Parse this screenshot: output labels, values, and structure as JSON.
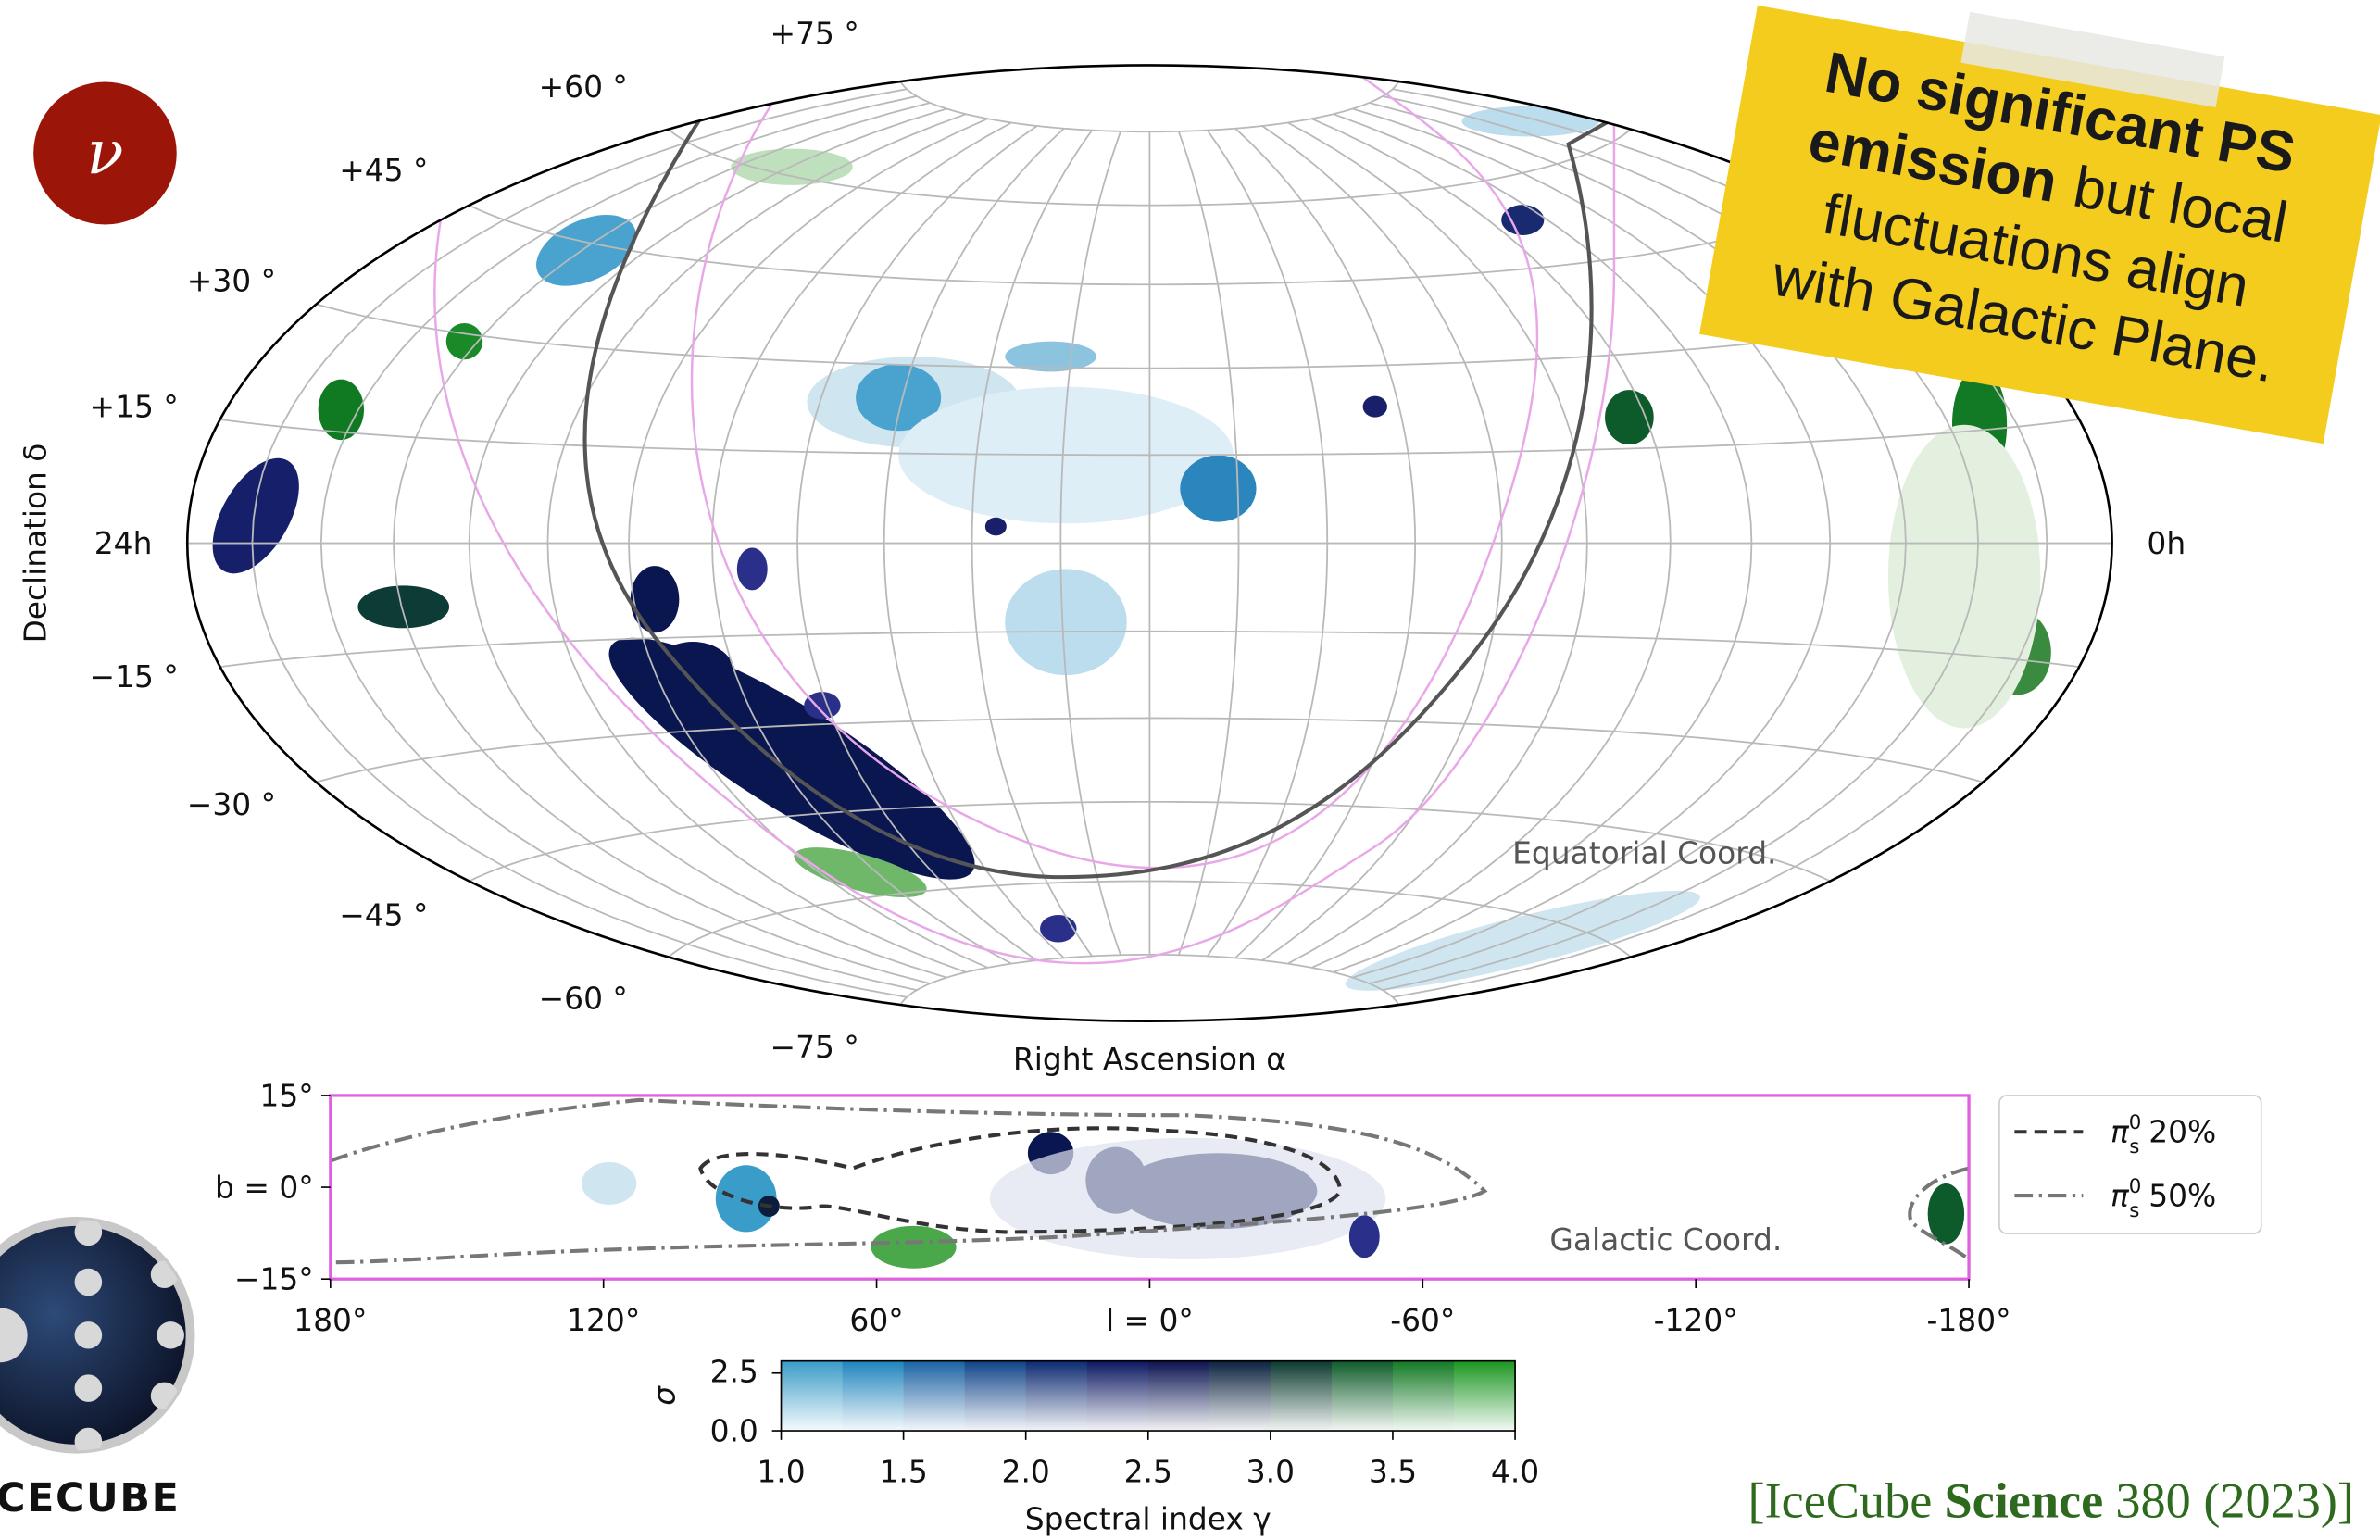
{
  "badge": "ν",
  "sky_map": {
    "dec_labels": [
      "+75 °",
      "+60 °",
      "+45 °",
      "+30 °",
      "+15 °",
      "−15 °",
      "−30 °",
      "−45 °",
      "−60 °",
      "−75 °"
    ],
    "ra_left": "24h",
    "ra_right": "0h",
    "y_title": "Declination δ",
    "x_title": "Right Ascension α",
    "frame_label": "Equatorial Coord."
  },
  "note": {
    "lines": [
      {
        "bold": "No significant PS"
      },
      {
        "bold": "emission",
        "text": "but local"
      },
      {
        "text": "fluctuations align"
      },
      {
        "text": "with Galactic Plane."
      }
    ]
  },
  "strip": {
    "y_labels": [
      "15°",
      "b = 0°",
      "−15°"
    ],
    "x_labels": [
      "180°",
      "120°",
      "60°",
      "l = 0°",
      "-60°",
      "-120°",
      "-180°"
    ],
    "frame_label": "Galactic Coord."
  },
  "legend": [
    {
      "symbol": "π",
      "sub": "s",
      "sup": "0",
      "text": "20%"
    },
    {
      "symbol": "π",
      "sub": "s",
      "sup": "0",
      "text": "50%"
    }
  ],
  "colorbar": {
    "y_title": "σ",
    "y_labels": [
      "2.5",
      "0.0"
    ],
    "x_labels": [
      "1.0",
      "1.5",
      "2.0",
      "2.5",
      "3.0",
      "3.5",
      "4.0"
    ],
    "x_title": "Spectral index γ"
  },
  "logo": "ICECUBE",
  "citation": {
    "before": "[IceCube",
    "bold": "Science",
    "after": "380 (2023)]"
  }
}
